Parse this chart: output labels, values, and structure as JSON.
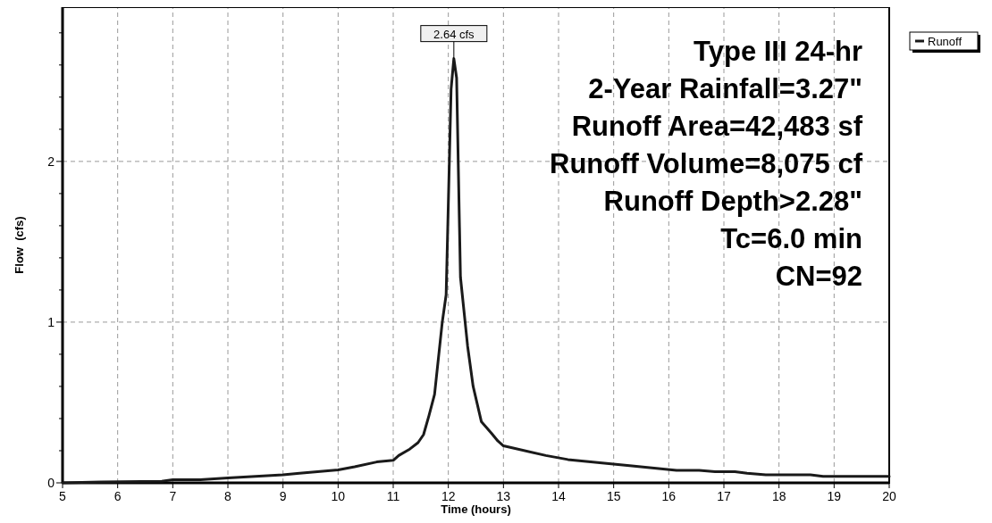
{
  "chart_data": {
    "type": "line",
    "xlabel": "Time  (hours)",
    "ylabel": "Flow  (cfs)",
    "xlim": [
      5,
      20
    ],
    "xticks": [
      5,
      6,
      7,
      8,
      9,
      10,
      11,
      12,
      13,
      14,
      15,
      16,
      17,
      18,
      19,
      20
    ],
    "ylim": [
      0,
      2.96
    ],
    "yticks": [
      0,
      {
        "value": 0.2,
        "label": null
      },
      {
        "value": 0.4,
        "label": null
      },
      {
        "value": 0.6,
        "label": null
      },
      {
        "value": 0.8,
        "label": null
      },
      1,
      {
        "value": 1.2,
        "label": null
      },
      {
        "value": 1.4,
        "label": null
      },
      {
        "value": 1.6,
        "label": null
      },
      {
        "value": 1.8,
        "label": null
      },
      2,
      {
        "value": 2.2,
        "label": null
      },
      {
        "value": 2.4,
        "label": null
      },
      {
        "value": 2.6,
        "label": null
      },
      {
        "value": 2.8,
        "label": null
      }
    ],
    "grid": true,
    "legend": "top right",
    "line_style": "solid",
    "marker": "none",
    "series": [
      {
        "name": "Runoff",
        "color": "#1a1a1a",
        "x": [
          5,
          5.7,
          6.8,
          7,
          7.5,
          8,
          8.5,
          9,
          9.3,
          10,
          10.3,
          10.7,
          11,
          11.1,
          11.3,
          11.45,
          11.55,
          11.65,
          11.75,
          11.89,
          11.96,
          12.05,
          12.1,
          12.15,
          12.22,
          12.35,
          12.45,
          12.6,
          12.78,
          12.9,
          13,
          13.77,
          14.17,
          15.33,
          16.14,
          16.55,
          16.84,
          17.2,
          17.42,
          17.76,
          18.57,
          18.8,
          20
        ],
        "values": [
          0,
          0.005,
          0.01,
          0.02,
          0.02,
          0.03,
          0.04,
          0.05,
          0.06,
          0.08,
          0.1,
          0.13,
          0.14,
          0.17,
          0.21,
          0.25,
          0.3,
          0.42,
          0.55,
          1.0,
          1.17,
          2.45,
          2.64,
          2.52,
          1.28,
          0.85,
          0.6,
          0.38,
          0.31,
          0.26,
          0.23,
          0.17,
          0.145,
          0.105,
          0.078,
          0.078,
          0.07,
          0.07,
          0.06,
          0.05,
          0.05,
          0.04,
          0.04
        ]
      }
    ],
    "annotations": [
      {
        "text": "2.64 cfs",
        "x": 12.1,
        "y": 2.64
      },
      "Type III 24-hr",
      "2-Year Rainfall=3.27\"",
      "Runoff Area=42,483 sf",
      "Runoff Volume=8,075 cf",
      "Runoff Depth>2.28\"",
      "Tc=6.0 min",
      "CN=92"
    ]
  }
}
